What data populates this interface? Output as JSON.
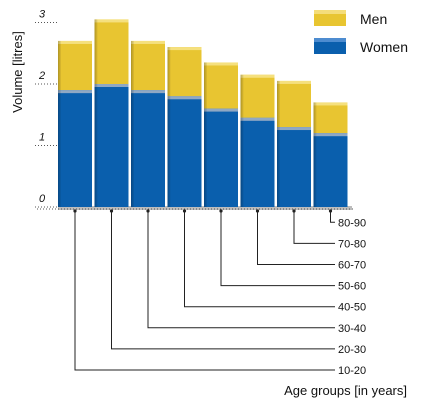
{
  "chart_data": {
    "type": "bar",
    "stacked": true,
    "title": "",
    "xlabel": "Age groups [in years]",
    "ylabel": "Volume [litres]",
    "ylim": [
      0,
      3.3
    ],
    "yticks": [
      {
        "value": 0,
        "label": "0"
      },
      {
        "value": 1,
        "label": "1"
      },
      {
        "value": 2,
        "label": "2"
      },
      {
        "value": 3,
        "label": "3"
      }
    ],
    "categories": [
      "10-20",
      "20-30",
      "30-40",
      "40-50",
      "50-60",
      "60-70",
      "70-80",
      "80-90"
    ],
    "series": [
      {
        "name": "Women",
        "color": "#0a5fad",
        "values": [
          1.9,
          2.0,
          1.9,
          1.8,
          1.6,
          1.45,
          1.3,
          1.2
        ]
      },
      {
        "name": "Men",
        "color": "#e8c531",
        "values": [
          0.8,
          1.05,
          0.8,
          0.8,
          0.75,
          0.7,
          0.75,
          0.5
        ]
      }
    ],
    "legend_position": "top-right",
    "grid": false
  }
}
